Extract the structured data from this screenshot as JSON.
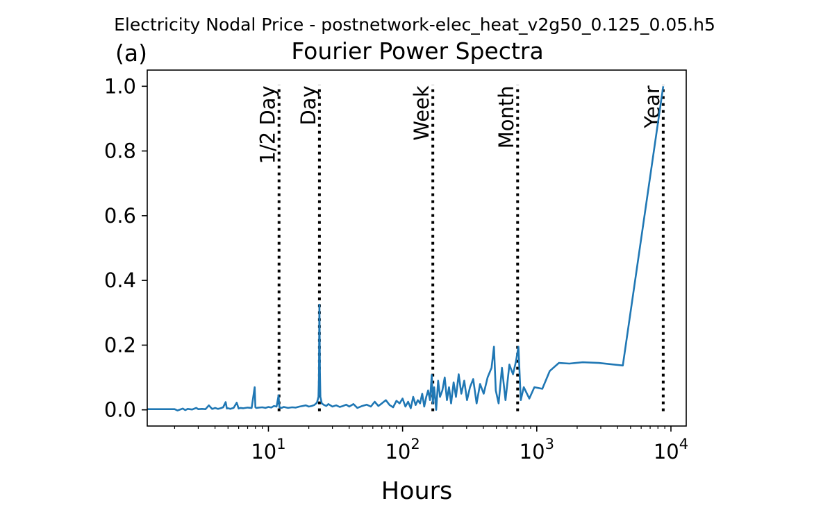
{
  "figure": {
    "suptitle": "Electricity Nodal Price - postnetwork-elec_heat_v2g50_0.125_0.05.h5",
    "panel_label": "(a)"
  },
  "chart_data": {
    "type": "line",
    "title": "Fourier Power Spectra",
    "xlabel": "Hours",
    "ylabel": "",
    "xscale": "log",
    "xlim": [
      1.25,
      13000
    ],
    "ylim": [
      -0.05,
      1.05
    ],
    "grid": false,
    "xticks": [
      {
        "value": 10,
        "base": "10",
        "exp": "1"
      },
      {
        "value": 100,
        "base": "10",
        "exp": "2"
      },
      {
        "value": 1000,
        "base": "10",
        "exp": "3"
      },
      {
        "value": 10000,
        "base": "10",
        "exp": "4"
      }
    ],
    "yticks": [
      {
        "value": 0.0,
        "label": "0.0"
      },
      {
        "value": 0.2,
        "label": "0.2"
      },
      {
        "value": 0.4,
        "label": "0.4"
      },
      {
        "value": 0.6,
        "label": "0.6"
      },
      {
        "value": 0.8,
        "label": "0.8"
      },
      {
        "value": 1.0,
        "label": "1.0"
      }
    ],
    "reference_lines": [
      {
        "x": 12,
        "label": "1/2 Day"
      },
      {
        "x": 24,
        "label": "Day"
      },
      {
        "x": 168,
        "label": "Week"
      },
      {
        "x": 720,
        "label": "Month"
      },
      {
        "x": 8760,
        "label": "Year"
      }
    ],
    "series": [
      {
        "color": "#1f77b4",
        "x": [
          1.0,
          2.0,
          2.1,
          2.3,
          2.4,
          2.5,
          2.7,
          2.9,
          3.0,
          3.2,
          3.4,
          3.6,
          3.8,
          3.9,
          4.0,
          4.2,
          4.4,
          4.6,
          4.8,
          4.9,
          5.0,
          5.2,
          5.5,
          5.8,
          6.0,
          6.2,
          6.5,
          7.0,
          7.5,
          7.9,
          8.0,
          8.1,
          8.5,
          9.0,
          9.5,
          10.0,
          10.5,
          11.0,
          11.5,
          11.9,
          12.0,
          12.1,
          12.5,
          13.0,
          14.0,
          15.0,
          16.0,
          17.0,
          18.0,
          19.0,
          20.0,
          21.0,
          22.0,
          23.0,
          23.6,
          23.8,
          24.0,
          24.2,
          24.4,
          25.0,
          26.0,
          27.0,
          28.0,
          30.0,
          32.0,
          34.0,
          36.0,
          38.0,
          40.0,
          43.0,
          46.0,
          50.0,
          54.0,
          58.0,
          62.0,
          66.0,
          70.0,
          75.0,
          80.0,
          85.0,
          90.0,
          95.0,
          100.0,
          105.0,
          110.0,
          115.0,
          120.0,
          125.0,
          130.0,
          135.0,
          140.0,
          145.0,
          150.0,
          155.0,
          160.0,
          165.0,
          168.0,
          172.0,
          178.0,
          184.0,
          190.0,
          198.0,
          206.0,
          214.0,
          222.0,
          230.0,
          240.0,
          250.0,
          262.0,
          274.0,
          288.0,
          302.0,
          318.0,
          336.0,
          356.0,
          378.0,
          402.0,
          430.0,
          460.0,
          480.0,
          495.0,
          520.0,
          550.0,
          585.0,
          625.0,
          665.0,
          700.0,
          730.0,
          760.0,
          800.0,
          880.0,
          960.0,
          1100.0,
          1250.0,
          1460.0,
          1750.0,
          2200.0,
          2900.0,
          4380.0,
          8760.0
        ],
        "y": [
          0.002,
          0.002,
          -0.002,
          0.004,
          -0.001,
          0.003,
          0.001,
          0.006,
          0.002,
          0.003,
          0.002,
          0.014,
          0.003,
          0.004,
          0.006,
          0.003,
          0.005,
          0.008,
          0.024,
          0.004,
          0.005,
          0.003,
          0.006,
          0.022,
          0.004,
          0.006,
          0.005,
          0.007,
          0.006,
          0.07,
          0.008,
          0.006,
          0.007,
          0.008,
          0.006,
          0.009,
          0.007,
          0.012,
          0.01,
          0.045,
          0.02,
          0.008,
          0.006,
          0.009,
          0.006,
          0.008,
          0.007,
          0.01,
          0.012,
          0.014,
          0.01,
          0.012,
          0.015,
          0.022,
          0.04,
          0.1,
          0.325,
          0.12,
          0.04,
          0.02,
          0.015,
          0.012,
          0.018,
          0.01,
          0.014,
          0.009,
          0.012,
          0.016,
          0.01,
          0.018,
          0.006,
          0.012,
          0.016,
          0.01,
          0.025,
          0.012,
          0.02,
          0.03,
          0.015,
          0.008,
          0.028,
          0.02,
          0.035,
          0.01,
          0.025,
          0.005,
          0.04,
          0.015,
          0.03,
          0.02,
          0.05,
          0.01,
          0.04,
          0.06,
          0.03,
          0.108,
          0.02,
          0.07,
          0.0,
          0.09,
          0.04,
          0.06,
          0.1,
          0.03,
          0.07,
          0.02,
          0.085,
          0.04,
          0.11,
          0.05,
          0.09,
          0.03,
          0.07,
          0.095,
          0.02,
          0.08,
          0.05,
          0.1,
          0.13,
          0.195,
          0.06,
          0.02,
          0.13,
          0.03,
          0.14,
          0.11,
          0.15,
          0.195,
          0.03,
          0.07,
          0.035,
          0.07,
          0.065,
          0.12,
          0.145,
          0.143,
          0.147,
          0.145,
          0.137,
          1.0
        ]
      }
    ]
  }
}
